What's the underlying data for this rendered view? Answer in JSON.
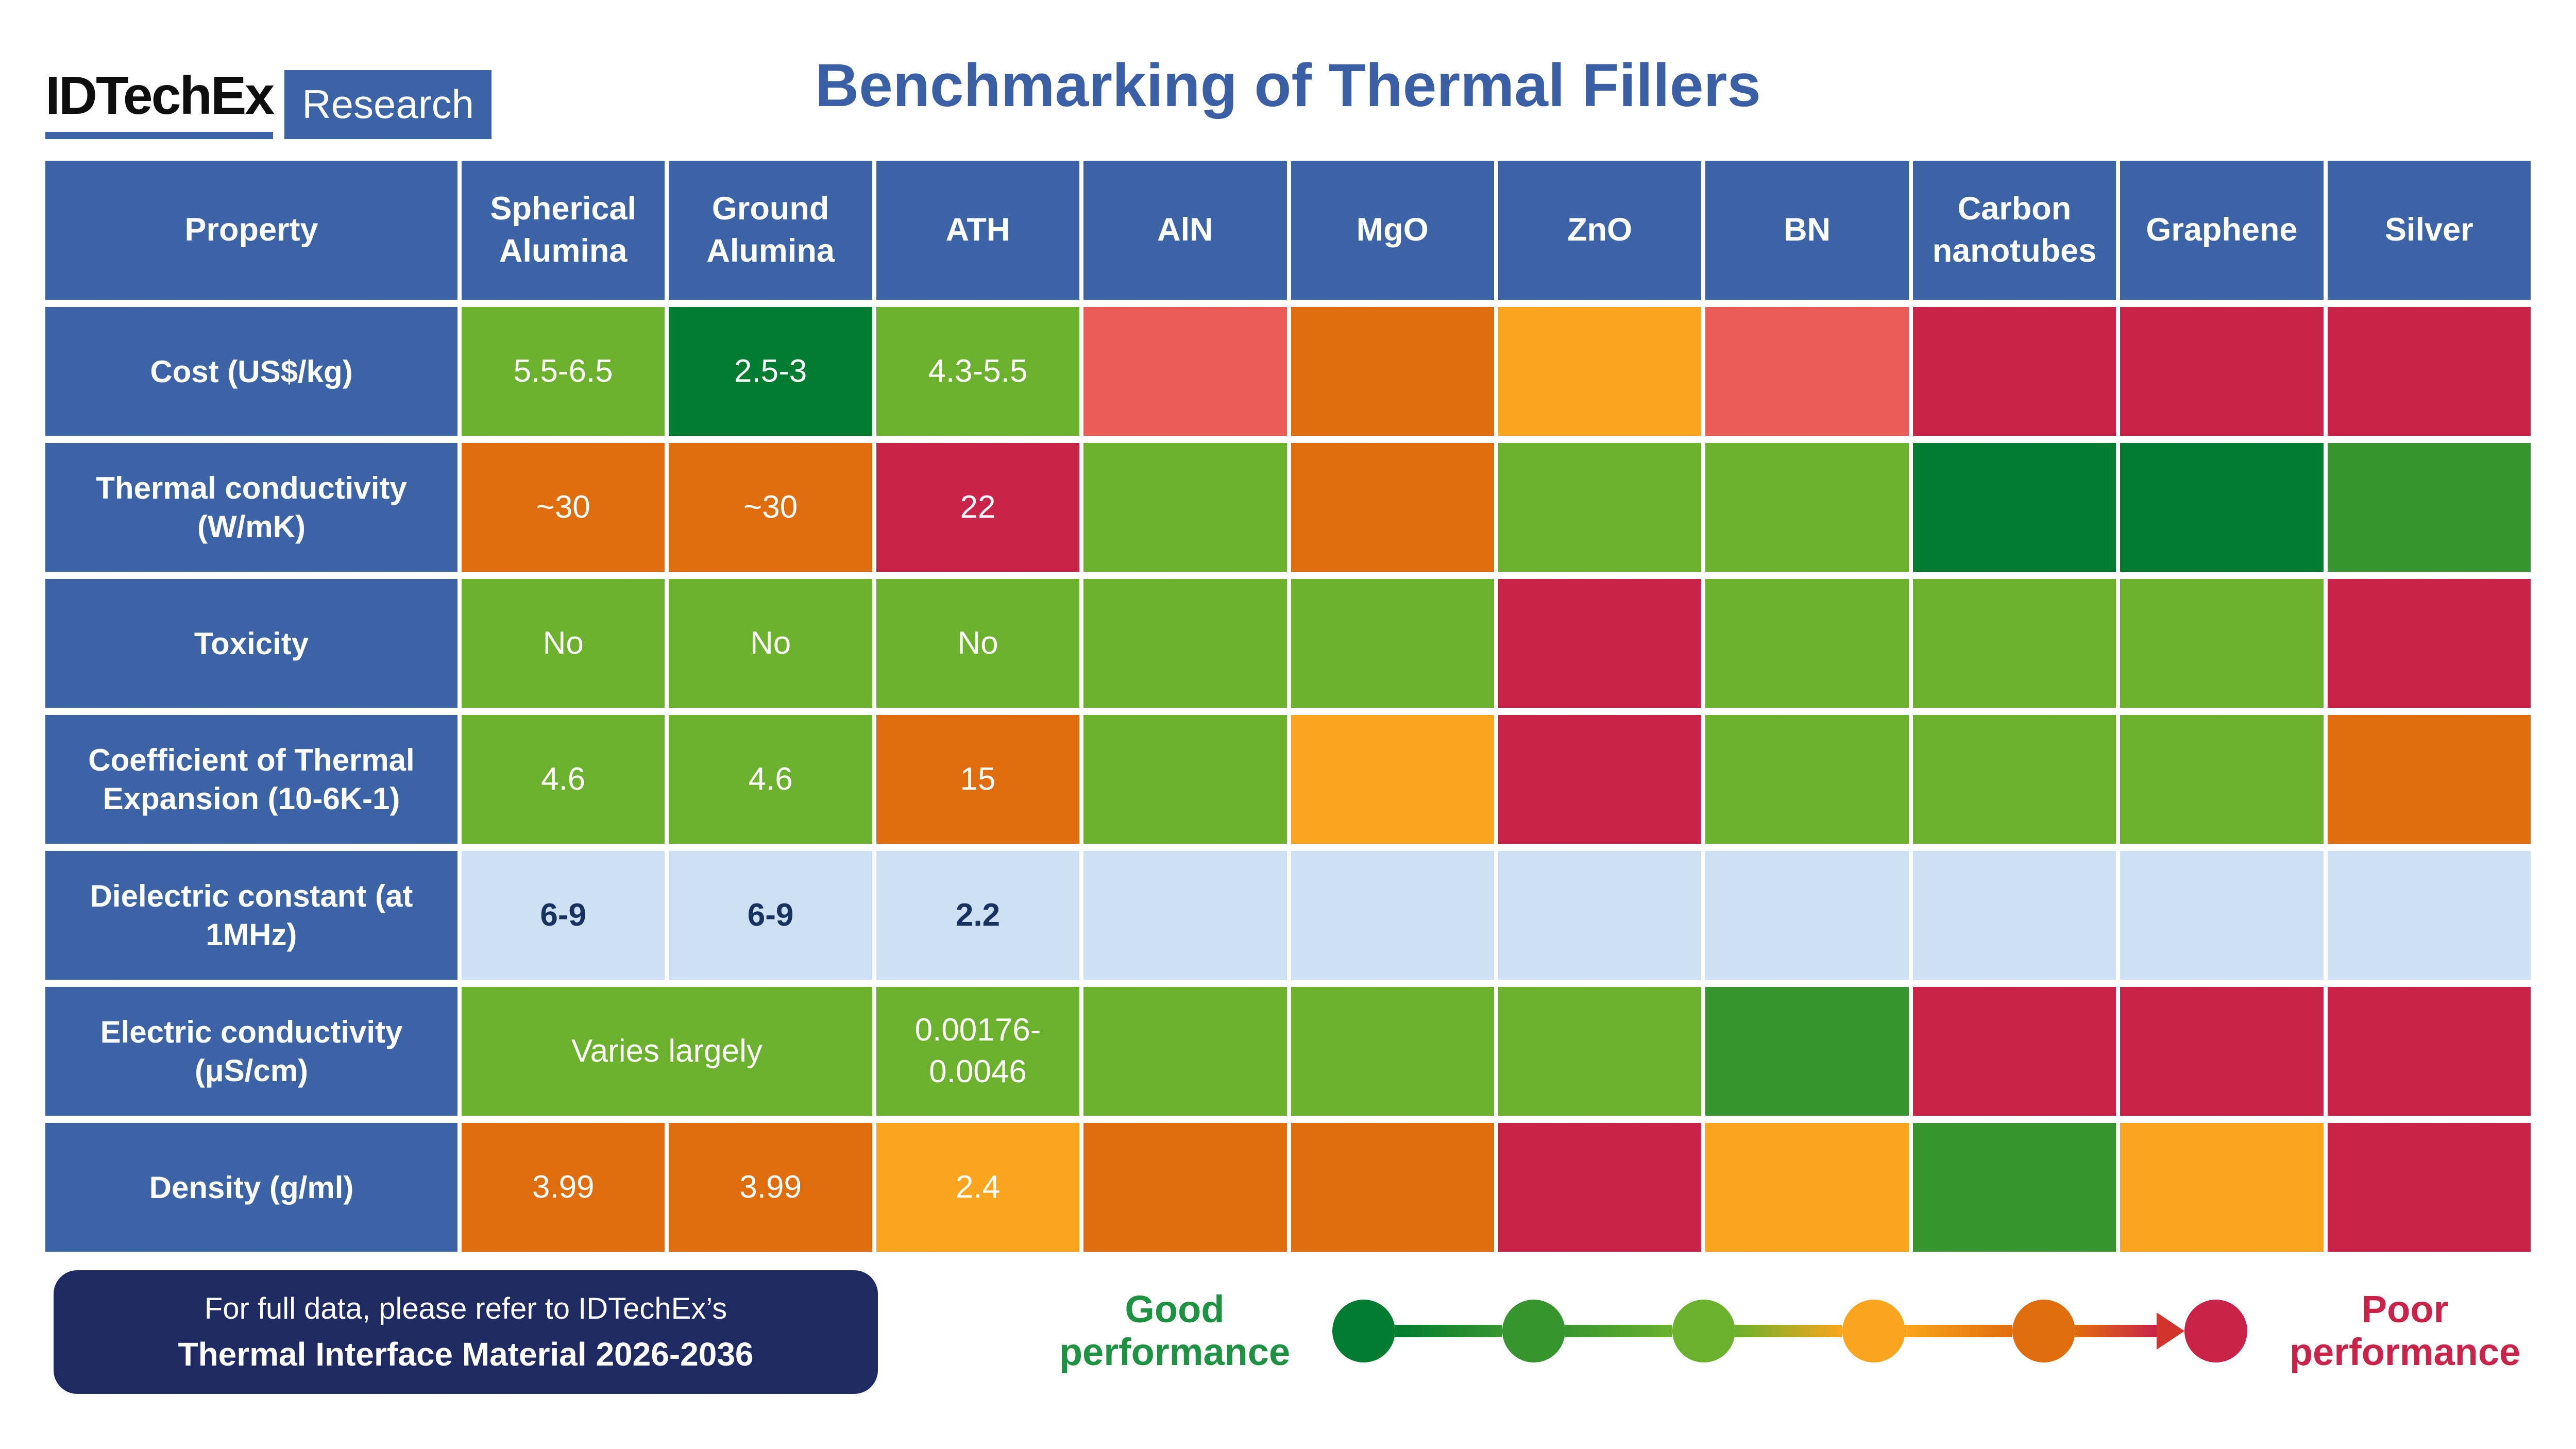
{
  "header": {
    "logo_brand": "IDTechEx",
    "logo_sub": "Research",
    "title": "Benchmarking of Thermal Fillers"
  },
  "footer_note": {
    "line1": "For full data, please refer to IDTechEx’s",
    "line2": "Thermal Interface Material 2026-2036"
  },
  "legend": {
    "good_label": "Good performance",
    "poor_label": "Poor performance"
  },
  "colors": {
    "title_blue": "#3A5FA5",
    "header_blue": "#3B63A6",
    "navy": "#1F2A63",
    "brand_black": "#0E0E0E",
    "good_text": "#1E9142",
    "poor_text": "#C9234A",
    "arrowhead_red": "#D2332B",
    "cell_text": "#FFFFFF",
    "dielectric_text": "#17325F",
    "tones": {
      "green-dark": "#027C30",
      "green-medium": "#37952F",
      "green-light": "#6BB12E",
      "amber": "#FAA51D",
      "orange": "#E06D0D",
      "salmon": "#EB5B57",
      "crimson": "#C9234A",
      "lightblue": "#CEE1F4"
    }
  },
  "chart_data": {
    "type": "heatmap",
    "title": "Benchmarking of Thermal Fillers",
    "columns": [
      "Property",
      "Spherical Alumina",
      "Ground Alumina",
      "ATH",
      "AlN",
      "MgO",
      "ZnO",
      "BN",
      "Carbon nanotubes",
      "Graphene",
      "Silver"
    ],
    "legend": {
      "good": "Good performance",
      "poor": "Poor performance",
      "levels": [
        "green-dark",
        "green-medium",
        "green-light",
        "amber",
        "orange",
        "crimson"
      ]
    },
    "rows": [
      {
        "property": "Cost (US$/kg)",
        "cells": [
          {
            "text": "5.5-6.5",
            "tone": "green-light"
          },
          {
            "text": "2.5-3",
            "tone": "green-dark"
          },
          {
            "text": "4.3-5.5",
            "tone": "green-light"
          },
          {
            "text": "",
            "tone": "salmon"
          },
          {
            "text": "",
            "tone": "orange"
          },
          {
            "text": "",
            "tone": "amber"
          },
          {
            "text": "",
            "tone": "salmon"
          },
          {
            "text": "",
            "tone": "crimson"
          },
          {
            "text": "",
            "tone": "crimson"
          },
          {
            "text": "",
            "tone": "crimson"
          }
        ]
      },
      {
        "property": "Thermal conductivity (W/mK)",
        "cells": [
          {
            "text": "~30",
            "tone": "orange"
          },
          {
            "text": "~30",
            "tone": "orange"
          },
          {
            "text": "22",
            "tone": "crimson"
          },
          {
            "text": "",
            "tone": "green-light"
          },
          {
            "text": "",
            "tone": "orange"
          },
          {
            "text": "",
            "tone": "green-light"
          },
          {
            "text": "",
            "tone": "green-light"
          },
          {
            "text": "",
            "tone": "green-dark"
          },
          {
            "text": "",
            "tone": "green-dark"
          },
          {
            "text": "",
            "tone": "green-medium"
          }
        ]
      },
      {
        "property": "Toxicity",
        "cells": [
          {
            "text": "No",
            "tone": "green-light"
          },
          {
            "text": "No",
            "tone": "green-light"
          },
          {
            "text": "No",
            "tone": "green-light"
          },
          {
            "text": "",
            "tone": "green-light"
          },
          {
            "text": "",
            "tone": "green-light"
          },
          {
            "text": "",
            "tone": "crimson"
          },
          {
            "text": "",
            "tone": "green-light"
          },
          {
            "text": "",
            "tone": "green-light"
          },
          {
            "text": "",
            "tone": "green-light"
          },
          {
            "text": "",
            "tone": "crimson"
          }
        ]
      },
      {
        "property": "Coefficient of Thermal Expansion (10-6K-1)",
        "cells": [
          {
            "text": "4.6",
            "tone": "green-light"
          },
          {
            "text": "4.6",
            "tone": "green-light"
          },
          {
            "text": "15",
            "tone": "orange"
          },
          {
            "text": "",
            "tone": "green-light"
          },
          {
            "text": "",
            "tone": "amber"
          },
          {
            "text": "",
            "tone": "crimson"
          },
          {
            "text": "",
            "tone": "green-light"
          },
          {
            "text": "",
            "tone": "green-light"
          },
          {
            "text": "",
            "tone": "green-light"
          },
          {
            "text": "",
            "tone": "orange"
          }
        ]
      },
      {
        "property": "Dielectric constant (at 1MHz)",
        "cells": [
          {
            "text": "6-9",
            "tone": "lightblue"
          },
          {
            "text": "6-9",
            "tone": "lightblue"
          },
          {
            "text": "2.2",
            "tone": "lightblue"
          },
          {
            "text": "",
            "tone": "lightblue"
          },
          {
            "text": "",
            "tone": "lightblue"
          },
          {
            "text": "",
            "tone": "lightblue"
          },
          {
            "text": "",
            "tone": "lightblue"
          },
          {
            "text": "",
            "tone": "lightblue"
          },
          {
            "text": "",
            "tone": "lightblue"
          },
          {
            "text": "",
            "tone": "lightblue"
          }
        ]
      },
      {
        "property": "Electric conductivity (μS/cm)",
        "cells": [
          {
            "text": "Varies largely",
            "tone": "green-light",
            "span": 2
          },
          {
            "text": "0.00176-0.0046",
            "tone": "green-light"
          },
          {
            "text": "",
            "tone": "green-light"
          },
          {
            "text": "",
            "tone": "green-light"
          },
          {
            "text": "",
            "tone": "green-light"
          },
          {
            "text": "",
            "tone": "green-medium"
          },
          {
            "text": "",
            "tone": "crimson"
          },
          {
            "text": "",
            "tone": "crimson"
          },
          {
            "text": "",
            "tone": "crimson"
          }
        ]
      },
      {
        "property": "Density (g/ml)",
        "cells": [
          {
            "text": "3.99",
            "tone": "orange"
          },
          {
            "text": "3.99",
            "tone": "orange"
          },
          {
            "text": "2.4",
            "tone": "amber"
          },
          {
            "text": "",
            "tone": "orange"
          },
          {
            "text": "",
            "tone": "orange"
          },
          {
            "text": "",
            "tone": "crimson"
          },
          {
            "text": "",
            "tone": "amber"
          },
          {
            "text": "",
            "tone": "green-medium"
          },
          {
            "text": "",
            "tone": "amber"
          },
          {
            "text": "",
            "tone": "crimson"
          }
        ]
      }
    ]
  }
}
